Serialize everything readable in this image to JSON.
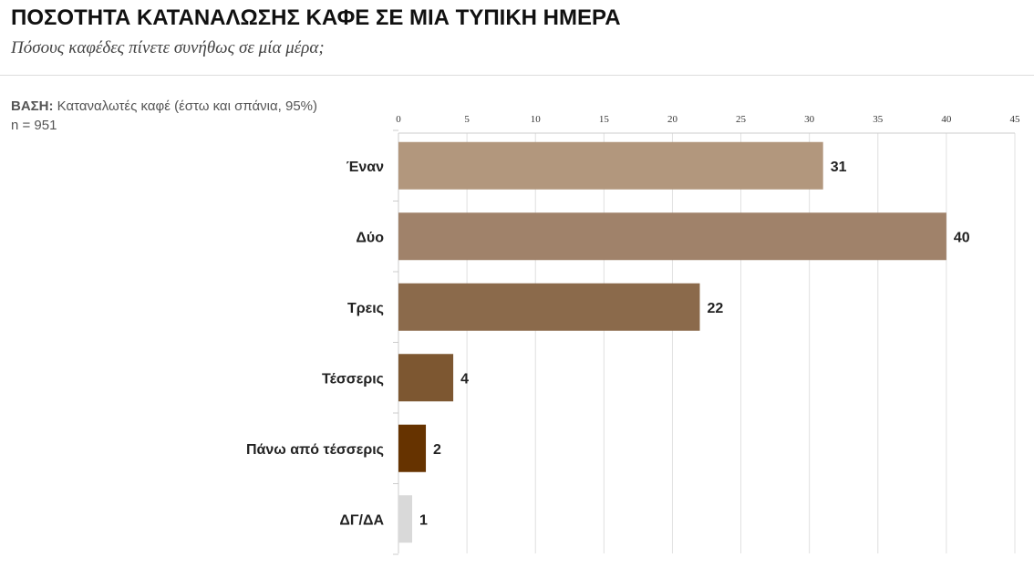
{
  "header": {
    "title": "ΠΟΣΟΤΗΤΑ ΚΑΤΑΝΑΛΩΣΗΣ ΚΑΦΕ ΣΕ ΜΙΑ ΤΥΠΙΚΗ ΗΜΕΡΑ",
    "subtitle": "Πόσους καφέδες πίνετε συνήθως σε μία μέρα;"
  },
  "base": {
    "label": "ΒΑΣΗ:",
    "text": "Καταναλωτές καφέ (έστω και σπάνια, 95%)",
    "n": "n = 951"
  },
  "chart_data": {
    "type": "bar",
    "orientation": "horizontal",
    "categories": [
      "Έναν",
      "Δύο",
      "Τρεις",
      "Τέσσερις",
      "Πάνω από τέσσερις",
      "ΔΓ/ΔΑ"
    ],
    "values": [
      31,
      40,
      22,
      4,
      2,
      1
    ],
    "colors": [
      "#b2977d",
      "#a0826a",
      "#8b6a4b",
      "#7d5731",
      "#663300",
      "#d9d9d9"
    ],
    "xlim": [
      0,
      45
    ],
    "xticks": [
      0,
      5,
      10,
      15,
      20,
      25,
      30,
      35,
      40,
      45
    ],
    "xaxis_position": "top",
    "grid": true,
    "data_labels": true
  }
}
